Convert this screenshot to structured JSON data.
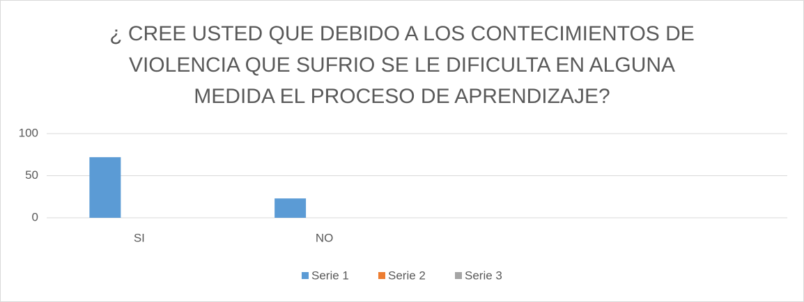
{
  "chart_data": {
    "type": "bar",
    "title": [
      "¿ CREE USTED QUE DEBIDO A LOS CONTECIMIENTOS DE",
      "VIOLENCIA QUE SUFRIO SE LE DIFICULTA EN ALGUNA",
      "MEDIDA EL PROCESO DE APRENDIZAJE?"
    ],
    "categories": [
      "SI",
      "NO",
      null,
      null
    ],
    "series": [
      {
        "name": "Serie 1",
        "color": "#5b9bd5",
        "values": [
          72,
          23,
          null,
          null
        ]
      },
      {
        "name": "Serie 2",
        "color": "#ed7d31",
        "values": [
          null,
          null,
          null,
          null
        ]
      },
      {
        "name": "Serie 3",
        "color": "#a5a5a5",
        "values": [
          null,
          null,
          null,
          null
        ]
      }
    ],
    "ylim": [
      0,
      100
    ],
    "yticks": [
      0,
      50,
      100
    ],
    "grid": true,
    "legend": "bottom"
  }
}
